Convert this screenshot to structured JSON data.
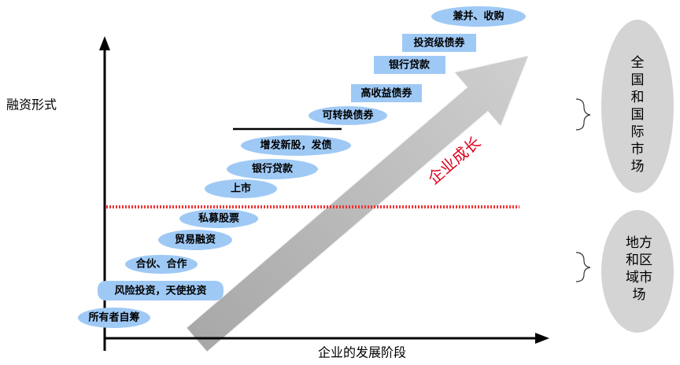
{
  "y_axis_label": "融资形式",
  "x_axis_label": "企业的发展阶段",
  "arrow_label": "企业成长",
  "stages": [
    {
      "label": "所有者自筹"
    },
    {
      "label": "风险投资，天使投资"
    },
    {
      "label": "合伙、合作"
    },
    {
      "label": "贸易融资"
    },
    {
      "label": "私募股票"
    },
    {
      "label": "上市"
    },
    {
      "label": "银行贷款"
    },
    {
      "label": "增发新股，发债"
    },
    {
      "label": "可转换债券"
    },
    {
      "label": "高收益债券"
    },
    {
      "label": "银行贷款"
    },
    {
      "label": "投资级债券"
    },
    {
      "label": "兼并、收购"
    }
  ],
  "markets": [
    {
      "label": "全国和国际市场"
    },
    {
      "label": "地方和区域市场"
    }
  ]
}
